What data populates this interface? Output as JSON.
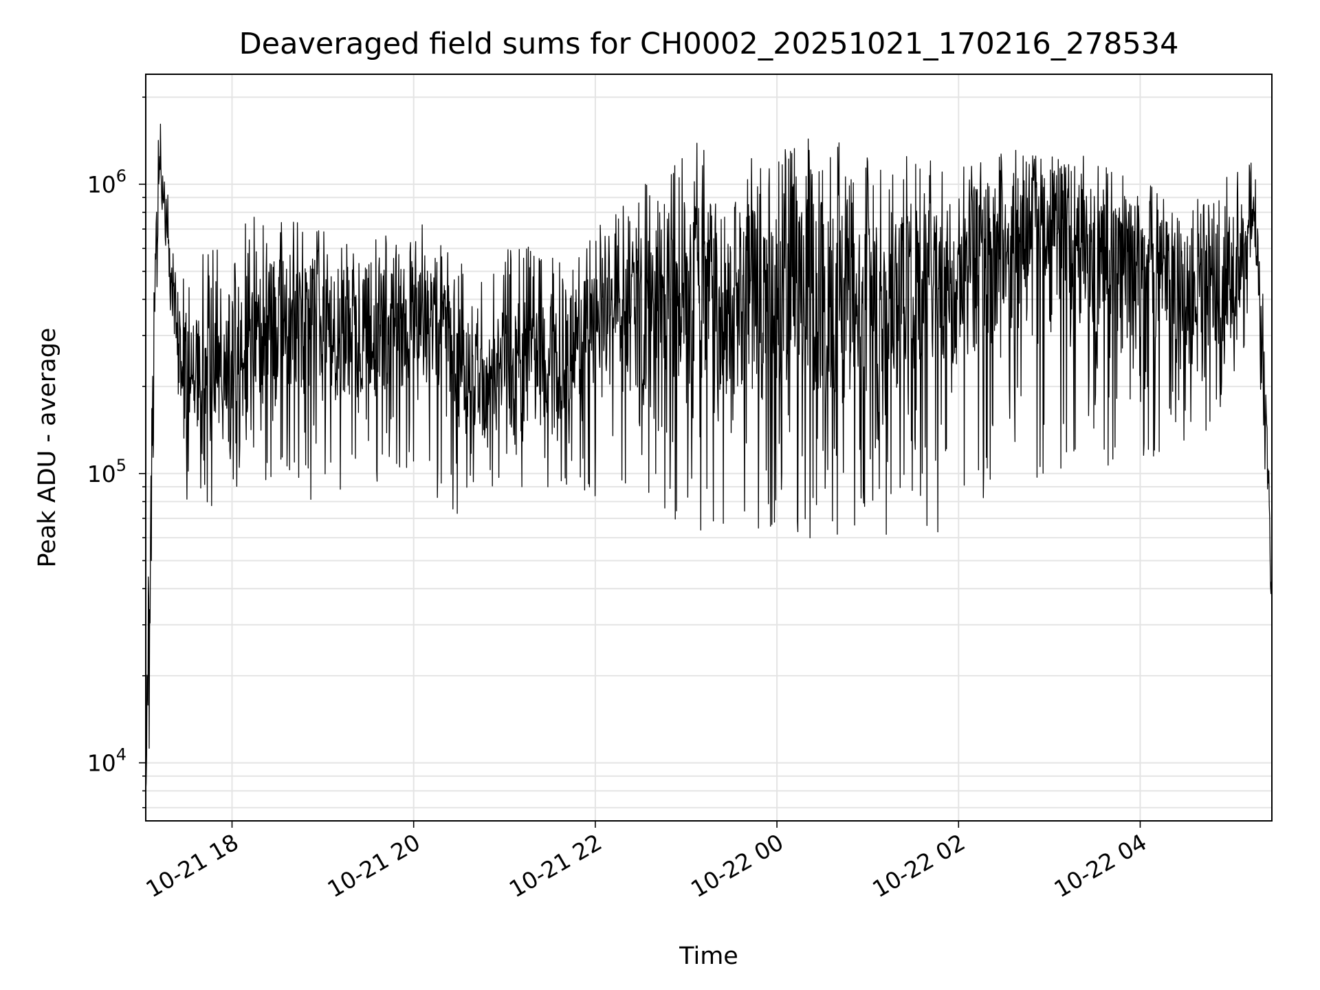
{
  "chart_data": {
    "type": "line",
    "title": "Deaveraged field sums for CH0002_20251021_170216_278534",
    "xlabel": "Time",
    "ylabel": "Peak ADU - average",
    "yscale": "log",
    "ylim": [
      6300,
      2400000
    ],
    "xlim_hours": [
      17.05,
      29.45
    ],
    "grid": true,
    "line_color": "#000000",
    "x_ticks": [
      {
        "hour": 18,
        "label": "10-21 18"
      },
      {
        "hour": 20,
        "label": "10-21 20"
      },
      {
        "hour": 22,
        "label": "10-21 22"
      },
      {
        "hour": 24,
        "label": "10-22 00"
      },
      {
        "hour": 26,
        "label": "10-22 02"
      },
      {
        "hour": 28,
        "label": "10-22 04"
      }
    ],
    "y_major_ticks": [
      {
        "value": 10000,
        "base": "10",
        "exp": "4"
      },
      {
        "value": 100000,
        "base": "10",
        "exp": "5"
      },
      {
        "value": 1000000,
        "base": "10",
        "exp": "6"
      }
    ],
    "series": [
      {
        "name": "Deaveraged field sum",
        "x_hours": [
          17.05,
          17.1,
          17.15,
          17.2,
          17.3,
          17.4,
          17.5,
          17.7,
          18.0,
          18.3,
          18.6,
          18.9,
          19.2,
          19.5,
          19.8,
          20.1,
          20.4,
          20.7,
          21.0,
          21.3,
          21.6,
          21.9,
          22.2,
          22.5,
          22.8,
          23.1,
          23.4,
          23.7,
          24.0,
          24.3,
          24.6,
          24.9,
          25.2,
          25.5,
          25.8,
          26.1,
          26.4,
          26.7,
          27.0,
          27.3,
          27.6,
          27.9,
          28.2,
          28.5,
          28.8,
          29.1,
          29.25,
          29.35,
          29.45
        ],
        "upper": [
          8000,
          200000,
          700000,
          1800000,
          900000,
          600000,
          450000,
          600000,
          800000,
          800000,
          750000,
          780000,
          650000,
          700000,
          650000,
          750000,
          650000,
          450000,
          600000,
          650000,
          600000,
          700000,
          800000,
          1200000,
          1300000,
          1400000,
          1300000,
          1300000,
          1300000,
          1500000,
          1500000,
          1400000,
          1200000,
          1300000,
          1200000,
          1200000,
          1300000,
          1400000,
          1300000,
          1300000,
          1200000,
          1100000,
          950000,
          900000,
          900000,
          1300000,
          1400000,
          500000,
          50000
        ],
        "lower": [
          7000,
          12000,
          150000,
          800000,
          400000,
          200000,
          70000,
          70000,
          90000,
          90000,
          90000,
          80000,
          80000,
          90000,
          100000,
          100000,
          70000,
          80000,
          80000,
          90000,
          80000,
          80000,
          80000,
          80000,
          70000,
          60000,
          65000,
          60000,
          55000,
          60000,
          55000,
          60000,
          60000,
          70000,
          60000,
          70000,
          80000,
          100000,
          90000,
          110000,
          100000,
          120000,
          110000,
          130000,
          140000,
          200000,
          600000,
          120000,
          27000
        ],
        "typical": [
          7500,
          50000,
          400000,
          1200000,
          600000,
          300000,
          200000,
          250000,
          280000,
          300000,
          330000,
          320000,
          280000,
          320000,
          320000,
          330000,
          260000,
          200000,
          230000,
          240000,
          230000,
          280000,
          320000,
          380000,
          400000,
          420000,
          400000,
          400000,
          380000,
          420000,
          430000,
          430000,
          400000,
          420000,
          420000,
          520000,
          600000,
          700000,
          650000,
          600000,
          560000,
          520000,
          480000,
          430000,
          420000,
          450000,
          900000,
          300000,
          35000
        ]
      }
    ]
  }
}
